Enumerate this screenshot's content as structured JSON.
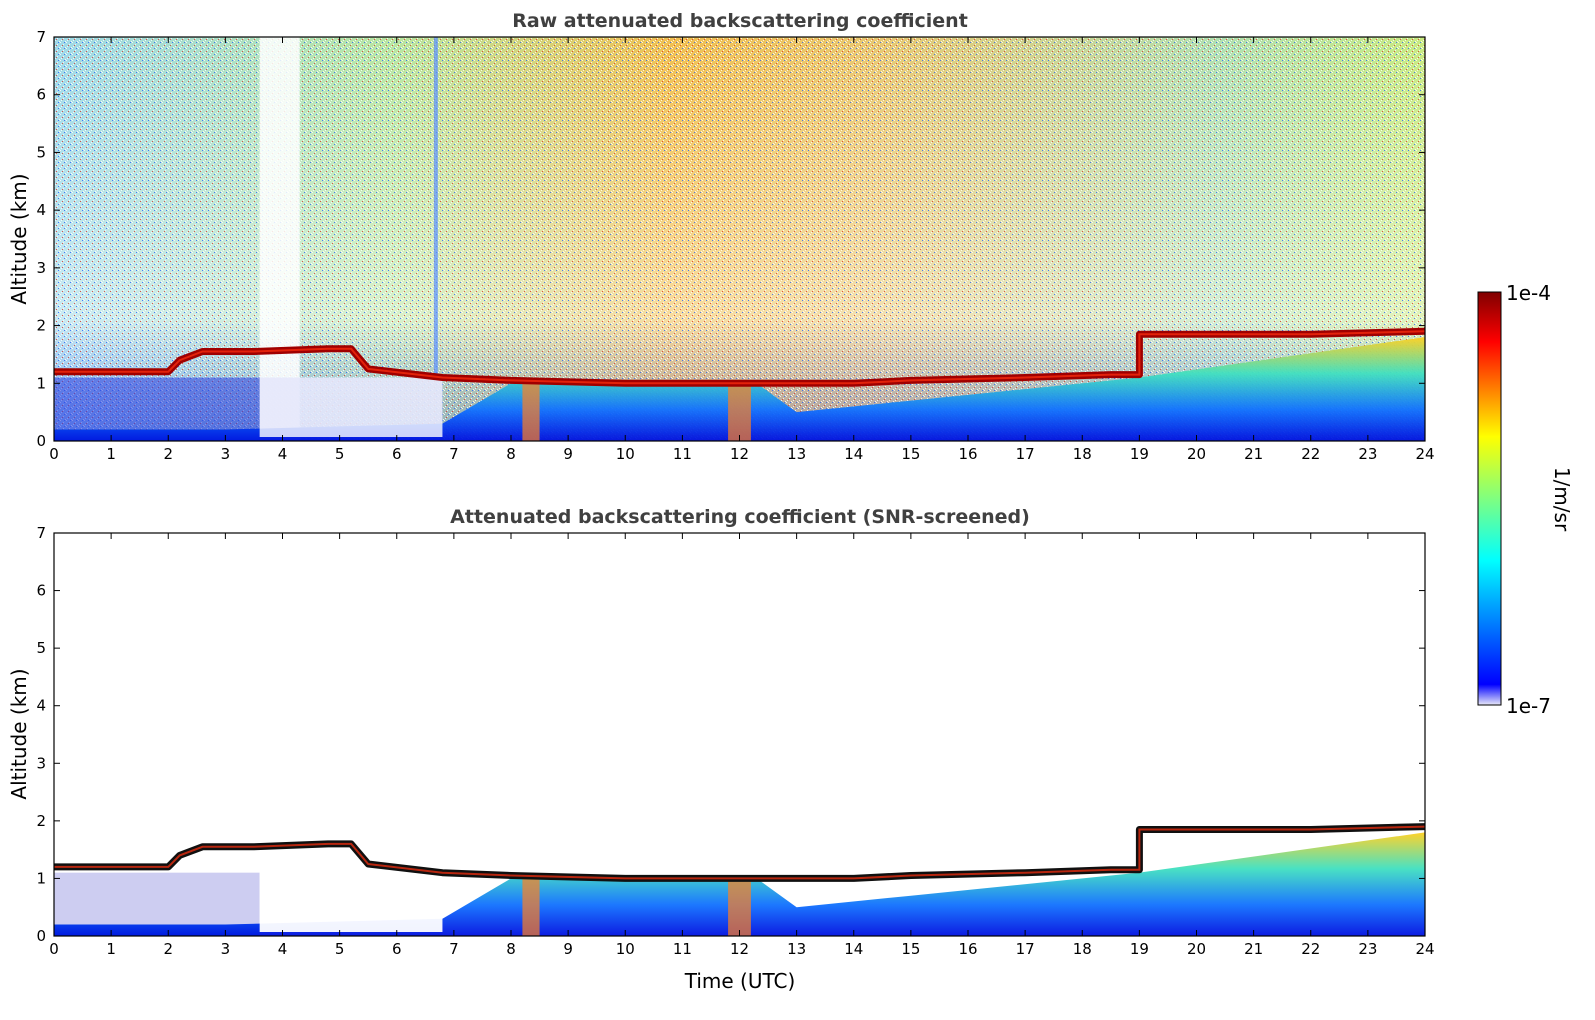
{
  "chart_data": [
    {
      "type": "heatmap",
      "title": "Raw attenuated backscattering coefficient",
      "xlabel": "",
      "ylabel": "Altitude (km)",
      "xlim": [
        0,
        24
      ],
      "ylim": [
        0,
        7
      ],
      "xticks": [
        "0",
        "1",
        "2",
        "3",
        "4",
        "5",
        "6",
        "7",
        "8",
        "9",
        "10",
        "11",
        "12",
        "13",
        "14",
        "15",
        "16",
        "17",
        "18",
        "19",
        "20",
        "21",
        "22",
        "23",
        "24"
      ],
      "yticks": [
        "0",
        "1",
        "2",
        "3",
        "4",
        "5",
        "6",
        "7"
      ],
      "screened": false,
      "cloud_base_km": [
        [
          0,
          1.2
        ],
        [
          2,
          1.2
        ],
        [
          2.2,
          1.4
        ],
        [
          2.6,
          1.55
        ],
        [
          3.5,
          1.55
        ],
        [
          4.8,
          1.6
        ],
        [
          5.2,
          1.6
        ],
        [
          5.5,
          1.25
        ],
        [
          6.8,
          1.1
        ],
        [
          8,
          1.05
        ],
        [
          10,
          1.0
        ],
        [
          12,
          1.0
        ],
        [
          14,
          1.0
        ],
        [
          15,
          1.05
        ],
        [
          17,
          1.1
        ],
        [
          18.5,
          1.15
        ],
        [
          19,
          1.15
        ],
        [
          19,
          1.85
        ],
        [
          20,
          1.85
        ],
        [
          22,
          1.85
        ],
        [
          24,
          1.9
        ]
      ],
      "aerosol_layer_top_km": [
        [
          0,
          0.2
        ],
        [
          3,
          0.2
        ],
        [
          6.8,
          0.3
        ],
        [
          8,
          1.0
        ],
        [
          12.3,
          1.0
        ],
        [
          13,
          0.5
        ],
        [
          15,
          0.7
        ],
        [
          19,
          1.1
        ],
        [
          24,
          1.8
        ]
      ]
    },
    {
      "type": "heatmap",
      "title": "Attenuated backscattering coefficient (SNR-screened)",
      "xlabel": "Time (UTC)",
      "ylabel": "Altitude (km)",
      "xlim": [
        0,
        24
      ],
      "ylim": [
        0,
        7
      ],
      "xticks": [
        "0",
        "1",
        "2",
        "3",
        "4",
        "5",
        "6",
        "7",
        "8",
        "9",
        "10",
        "11",
        "12",
        "13",
        "14",
        "15",
        "16",
        "17",
        "18",
        "19",
        "20",
        "21",
        "22",
        "23",
        "24"
      ],
      "yticks": [
        "0",
        "1",
        "2",
        "3",
        "4",
        "5",
        "6",
        "7"
      ],
      "screened": true,
      "cloud_base_km": [
        [
          0,
          1.2
        ],
        [
          2,
          1.2
        ],
        [
          2.2,
          1.4
        ],
        [
          2.6,
          1.55
        ],
        [
          3.5,
          1.55
        ],
        [
          4.8,
          1.6
        ],
        [
          5.2,
          1.6
        ],
        [
          5.5,
          1.25
        ],
        [
          6.8,
          1.1
        ],
        [
          8,
          1.05
        ],
        [
          10,
          1.0
        ],
        [
          12,
          1.0
        ],
        [
          14,
          1.0
        ],
        [
          15,
          1.05
        ],
        [
          17,
          1.1
        ],
        [
          18.5,
          1.15
        ],
        [
          19,
          1.15
        ],
        [
          19,
          1.85
        ],
        [
          20,
          1.85
        ],
        [
          22,
          1.85
        ],
        [
          24,
          1.9
        ]
      ],
      "aerosol_layer_top_km": [
        [
          0,
          0.2
        ],
        [
          3,
          0.2
        ],
        [
          6.8,
          0.3
        ],
        [
          8,
          1.0
        ],
        [
          12.3,
          1.0
        ],
        [
          13,
          0.5
        ],
        [
          15,
          0.7
        ],
        [
          19,
          1.1
        ],
        [
          24,
          1.8
        ]
      ]
    }
  ],
  "colorbar": {
    "label": "1/m/sr",
    "max_label": "1e-4",
    "min_label": "1e-7",
    "colormap": "jet",
    "scale": "log",
    "stops": [
      "#e8e8f8",
      "#0000ff",
      "#00ffff",
      "#ffff00",
      "#ff0000",
      "#800000"
    ]
  }
}
